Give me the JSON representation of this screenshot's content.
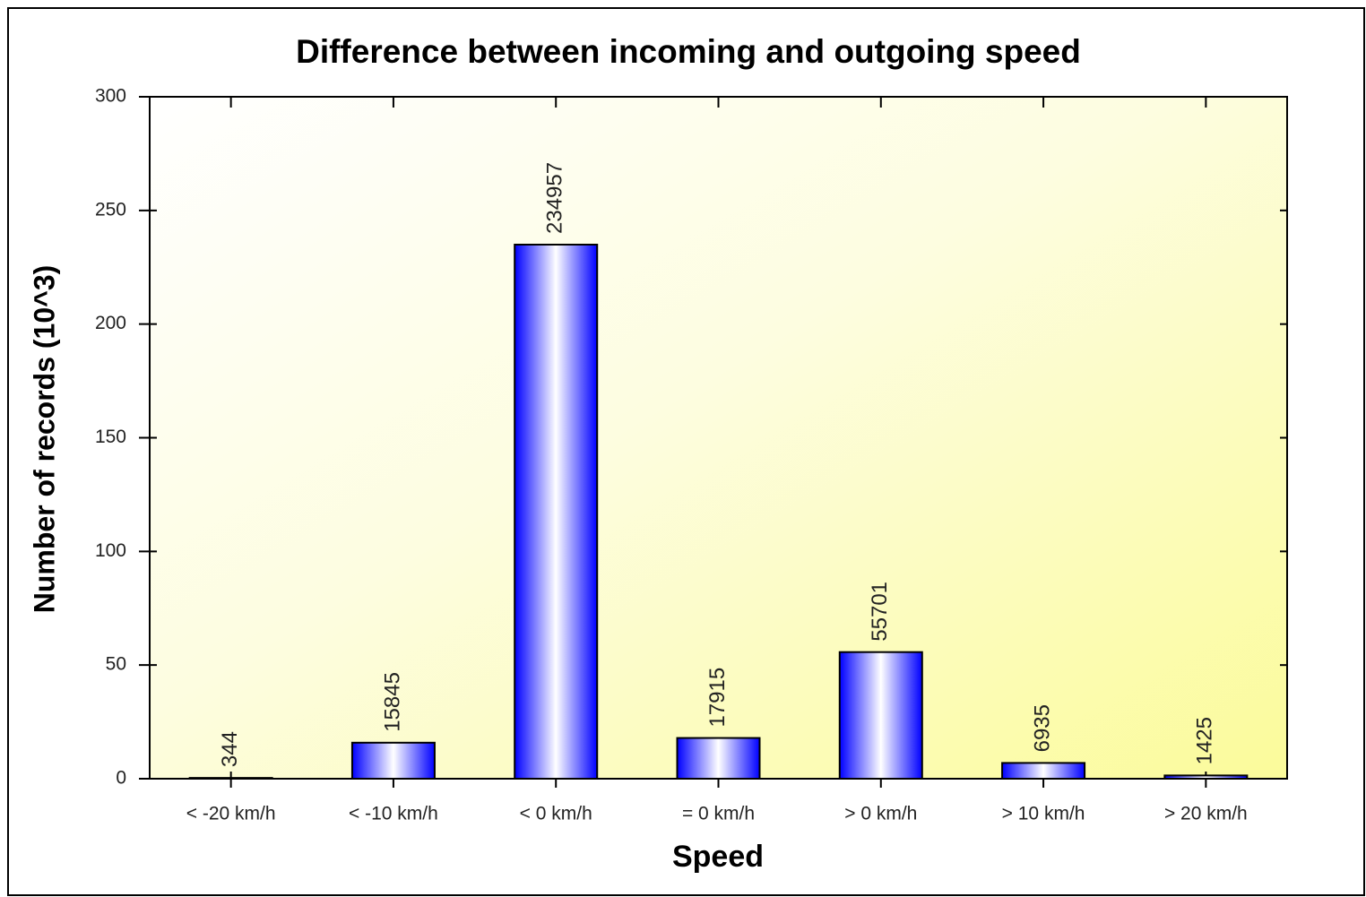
{
  "chart_data": {
    "type": "bar",
    "title": "Difference between incoming and outgoing speed",
    "x_label": "Speed",
    "y_label": "Number of records (10^3)",
    "categories": [
      "< -20 km/h",
      "< -10 km/h",
      "< 0 km/h",
      "= 0 km/h",
      "> 0 km/h",
      "> 10 km/h",
      "> 20 km/h"
    ],
    "values": [
      0.344,
      15.845,
      234.957,
      17.915,
      55.701,
      6.935,
      1.425
    ],
    "value_labels": [
      "344",
      "15845",
      "234957",
      "17915",
      "55701",
      "6935",
      "1425"
    ],
    "color": "#0000ff",
    "ylim": [
      0,
      300
    ],
    "yticks": [
      0,
      50,
      100,
      150,
      200,
      250,
      300
    ]
  }
}
